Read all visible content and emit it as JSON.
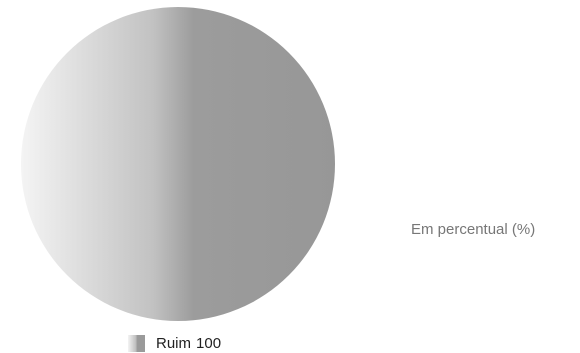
{
  "chart_data": {
    "type": "pie",
    "unit_note": "Em percentual (%)",
    "slices": [
      {
        "label": "Ruim",
        "value": 100,
        "color": "#9a9a9a"
      }
    ],
    "legend": {
      "placement": "bottom",
      "entries": [
        {
          "label": "Ruim",
          "value": "100"
        }
      ]
    }
  }
}
